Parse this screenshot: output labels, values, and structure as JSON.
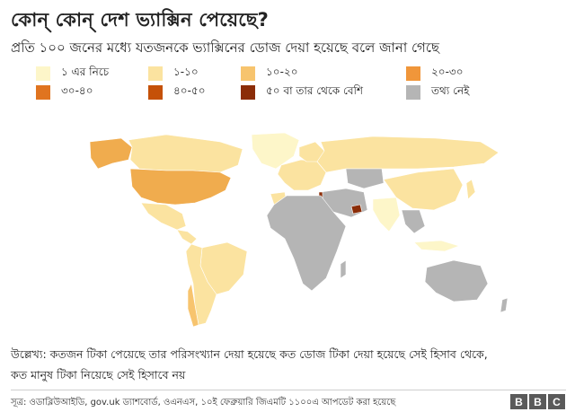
{
  "title": "কোন্ কোন্ দেশ ভ্যাক্সিন পেয়েছে?",
  "subtitle": "প্রতি ১০০ জনের মধ্যে যতজনকে ভ্যাক্সিনের ডোজ দেয়া হয়েছে বলে জানা গেছে",
  "legend": [
    {
      "label": "১ এর নিচে",
      "color": "#fdf6c9"
    },
    {
      "label": "১-১০",
      "color": "#fbe3a0"
    },
    {
      "label": "১০-২০",
      "color": "#f7c46e"
    },
    {
      "label": "২০-৩০",
      "color": "#f0963a"
    },
    {
      "label": "৩০-৪০",
      "color": "#e0741f"
    },
    {
      "label": "৪০-৫০",
      "color": "#c55108"
    },
    {
      "label": "৫০ বা তার থেকে বেশি",
      "color": "#8b2d08"
    },
    {
      "label": "তথ্য নেই",
      "color": "#b5b5b5"
    }
  ],
  "note_line1": "উল্লেখ্য: কতজন টিকা পেয়েছে তার পরিসংখ্যান দেয়া হয়েছে কত ডোজ টিকা দেয়া হয়েছে সেই হিসাব থেকে,",
  "note_line2": "কত মানুষ টিকা নিয়েছে সেই হিসাবে নয়",
  "source": "সূত্র: ওডাব্লিউআইডি, gov.uk ড্যাশবোর্ড, ওএনএস, ১০ই ফেব্রুয়ারি জিএমটি ১১০০এ আপডেট করা হয়েছে",
  "brand": [
    "B",
    "B",
    "C"
  ],
  "map_colors": {
    "usa": "#f0ac4e",
    "canada": "#fbe3a0",
    "alaska": "#f0ac4e",
    "greenland": "#fdf6c9",
    "mexico": "#fbe3a0",
    "south_america": "#fbe3a0",
    "brazil": "#fbe3a0",
    "chile": "#f7c46e",
    "europe": "#fbe3a0",
    "russia": "#fbe3a0",
    "uae": "#8b2d08",
    "israel": "#8b2d08",
    "china": "#fbe3a0",
    "india": "#fdf6c9",
    "africa": "#b5b5b5",
    "morocco": "#fbe3a0",
    "kazakhstan": "#b5b5b5",
    "middle_east": "#b5b5b5",
    "southeast_asia": "#b5b5b5",
    "australia": "#b5b5b5",
    "indonesia": "#fdf6c9"
  }
}
